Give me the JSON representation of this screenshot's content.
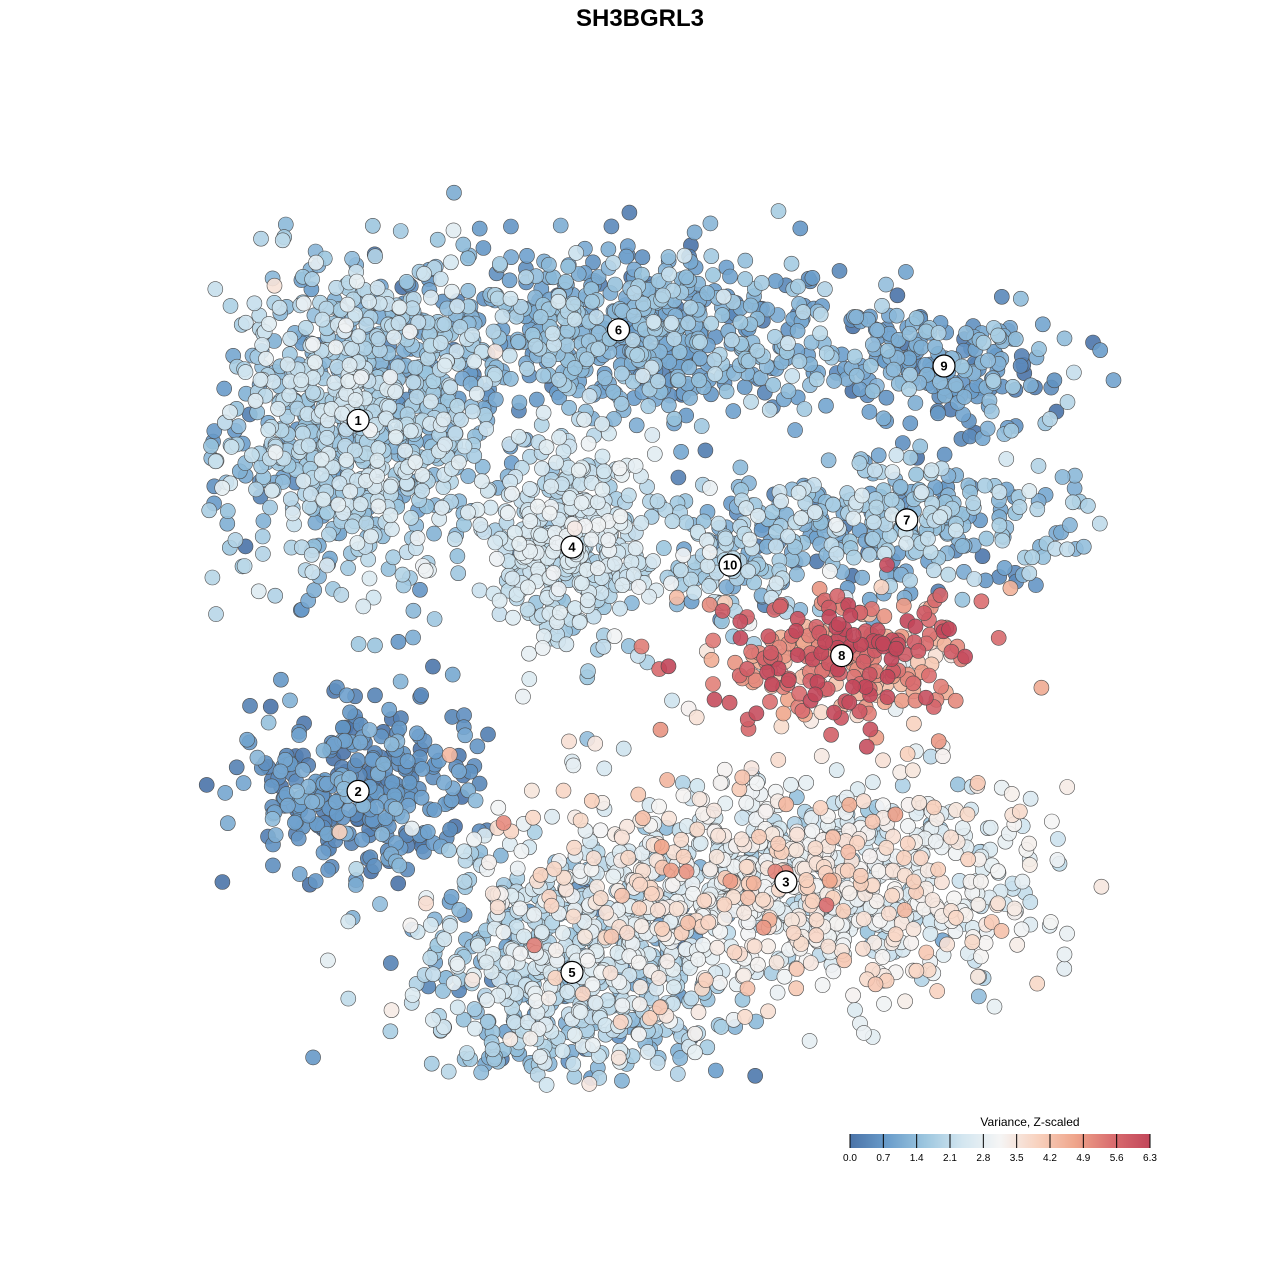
{
  "chart_data": {
    "type": "scatter",
    "title": "SH3BGRL3",
    "xlabel": "",
    "ylabel": "",
    "grid": false,
    "legend": {
      "title": "Variance, Z-scaled",
      "placement": "bottom-right",
      "ticks": [
        "0.0",
        "0.7",
        "1.4",
        "2.1",
        "2.8",
        "3.5",
        "4.2",
        "4.9",
        "5.6",
        "6.3"
      ],
      "range": [
        0.0,
        6.3
      ],
      "colors": [
        "#4a73a8",
        "#6a9dcb",
        "#9cc6df",
        "#d3e6f0",
        "#f5f5f5",
        "#f8d2bf",
        "#efa58b",
        "#d96d6f",
        "#c2465a"
      ]
    },
    "clusters": [
      {
        "id": "1",
        "cx": 0.17,
        "cy": 0.74,
        "sx": 0.075,
        "sy": 0.09,
        "n": 900,
        "mean": 1.7,
        "sd": 0.55
      },
      {
        "id": "6",
        "cx": 0.45,
        "cy": 0.84,
        "sx": 0.13,
        "sy": 0.045,
        "n": 720,
        "mean": 1.1,
        "sd": 0.5
      },
      {
        "id": "4",
        "cx": 0.4,
        "cy": 0.6,
        "sx": 0.045,
        "sy": 0.055,
        "n": 420,
        "mean": 2.2,
        "sd": 0.4
      },
      {
        "id": "9",
        "cx": 0.8,
        "cy": 0.8,
        "sx": 0.07,
        "sy": 0.03,
        "n": 200,
        "mean": 0.9,
        "sd": 0.45
      },
      {
        "id": "7",
        "cx": 0.76,
        "cy": 0.63,
        "sx": 0.1,
        "sy": 0.035,
        "n": 320,
        "mean": 1.3,
        "sd": 0.6
      },
      {
        "id": "10",
        "cx": 0.57,
        "cy": 0.58,
        "sx": 0.035,
        "sy": 0.035,
        "n": 110,
        "mean": 1.6,
        "sd": 0.5
      },
      {
        "id": "8",
        "cx": 0.69,
        "cy": 0.48,
        "sx": 0.07,
        "sy": 0.04,
        "n": 280,
        "mean": 5.3,
        "sd": 0.9
      },
      {
        "id": "2",
        "cx": 0.17,
        "cy": 0.33,
        "sx": 0.06,
        "sy": 0.05,
        "n": 320,
        "mean": 0.6,
        "sd": 0.4
      },
      {
        "id": "3",
        "cx": 0.63,
        "cy": 0.23,
        "sx": 0.14,
        "sy": 0.06,
        "n": 1000,
        "mean": 2.9,
        "sd": 0.7
      },
      {
        "id": "5",
        "cx": 0.4,
        "cy": 0.13,
        "sx": 0.085,
        "sy": 0.06,
        "n": 620,
        "mean": 1.9,
        "sd": 0.7
      }
    ]
  }
}
